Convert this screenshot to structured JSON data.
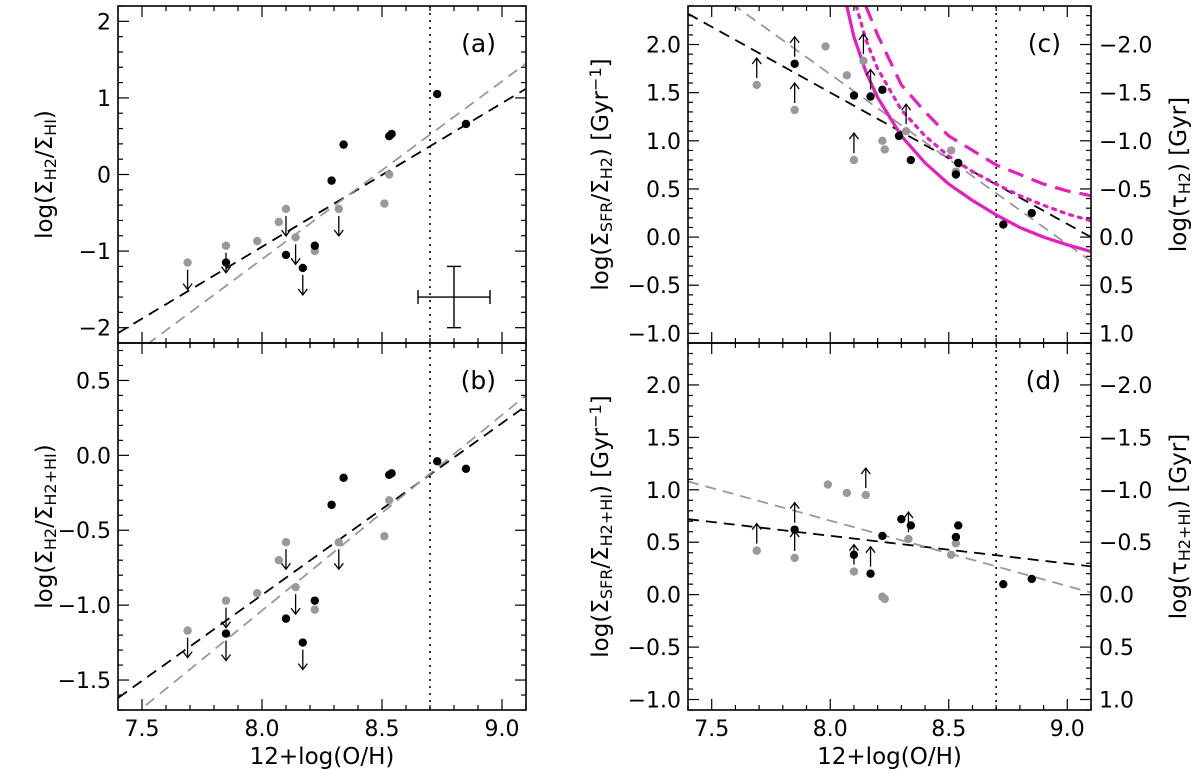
{
  "xlabel": "12+log(O/H)",
  "colors": {
    "gray": "#999999",
    "black": "#000000",
    "magenta": "#e61ebe"
  },
  "chart_data": [
    {
      "id": "a",
      "type": "scatter",
      "panel_label": "(a)",
      "ylabel_main": "log(Σ",
      "ylabel_sub1": "H2",
      "ylabel_mid": "/Σ",
      "ylabel_sub2": "HI",
      "ylabel_end": ")",
      "xlim": [
        7.4,
        9.1
      ],
      "ylim": [
        -2.2,
        2.2
      ],
      "x_ticks": [
        7.5,
        8.0,
        8.5,
        9.0
      ],
      "y_ticks": [
        -2,
        -1,
        0,
        1,
        2
      ],
      "y_tick_labels": [
        "−2",
        "−1",
        "0",
        "1",
        "2"
      ],
      "vline": 8.7,
      "error_bar": {
        "x": 8.8,
        "y": -1.6,
        "xerr": 0.15,
        "yerr": 0.4
      },
      "series": [
        {
          "color": "gray",
          "points": [
            [
              7.69,
              -1.15,
              "down"
            ],
            [
              7.85,
              -0.93,
              "down"
            ],
            [
              7.98,
              -0.87,
              null
            ],
            [
              8.07,
              -0.62,
              null
            ],
            [
              8.1,
              -0.45,
              "down"
            ],
            [
              8.14,
              -0.82,
              "down"
            ],
            [
              8.22,
              -1.0,
              null
            ],
            [
              8.32,
              -0.45,
              "down"
            ],
            [
              8.51,
              -0.38,
              null
            ],
            [
              8.53,
              0.0,
              null
            ]
          ]
        },
        {
          "color": "black",
          "points": [
            [
              7.85,
              -1.15,
              null
            ],
            [
              8.1,
              -1.05,
              null
            ],
            [
              8.17,
              -1.22,
              "down"
            ],
            [
              8.22,
              -0.93,
              null
            ],
            [
              8.29,
              -0.08,
              null
            ],
            [
              8.34,
              0.39,
              null
            ],
            [
              8.53,
              0.5,
              null
            ],
            [
              8.54,
              0.53,
              null
            ],
            [
              8.73,
              1.05,
              null
            ],
            [
              8.85,
              0.66,
              null
            ]
          ]
        }
      ],
      "lines": [
        {
          "color": "black",
          "dash": "long",
          "x": [
            7.4,
            9.1
          ],
          "y": [
            -2.07,
            1.12
          ]
        },
        {
          "color": "gray",
          "dash": "long",
          "x": [
            7.4,
            9.1
          ],
          "y": [
            -2.5,
            1.45
          ]
        }
      ]
    },
    {
      "id": "b",
      "type": "scatter",
      "panel_label": "(b)",
      "ylabel_main": "log(Σ",
      "ylabel_sub1": "H2",
      "ylabel_mid": "/Σ",
      "ylabel_sub2": "H2+HI",
      "ylabel_end": ")",
      "xlim": [
        7.4,
        9.1
      ],
      "ylim": [
        -1.7,
        0.75
      ],
      "x_ticks": [
        7.5,
        8.0,
        8.5,
        9.0
      ],
      "x_tick_labels": [
        "7.5",
        "8.0",
        "8.5",
        "9.0"
      ],
      "y_ticks": [
        -1.5,
        -1.0,
        -0.5,
        0.0,
        0.5
      ],
      "y_tick_labels": [
        "−1.5",
        "−1.0",
        "−0.5",
        "0.0",
        "0.5"
      ],
      "vline": 8.7,
      "series": [
        {
          "color": "gray",
          "points": [
            [
              7.69,
              -1.17,
              "down"
            ],
            [
              7.85,
              -0.97,
              "down"
            ],
            [
              7.98,
              -0.92,
              null
            ],
            [
              8.07,
              -0.7,
              null
            ],
            [
              8.1,
              -0.58,
              "down"
            ],
            [
              8.14,
              -0.88,
              "down"
            ],
            [
              8.22,
              -1.03,
              null
            ],
            [
              8.32,
              -0.58,
              "down"
            ],
            [
              8.51,
              -0.54,
              null
            ],
            [
              8.53,
              -0.3,
              null
            ]
          ]
        },
        {
          "color": "black",
          "points": [
            [
              7.85,
              -1.19,
              "down"
            ],
            [
              8.1,
              -1.09,
              null
            ],
            [
              8.17,
              -1.25,
              "down"
            ],
            [
              8.22,
              -0.97,
              null
            ],
            [
              8.29,
              -0.33,
              null
            ],
            [
              8.34,
              -0.15,
              null
            ],
            [
              8.53,
              -0.13,
              null
            ],
            [
              8.54,
              -0.12,
              null
            ],
            [
              8.73,
              -0.04,
              null
            ],
            [
              8.85,
              -0.09,
              null
            ]
          ]
        }
      ],
      "lines": [
        {
          "color": "black",
          "dash": "long",
          "x": [
            7.4,
            9.1
          ],
          "y": [
            -1.62,
            0.33
          ]
        },
        {
          "color": "gray",
          "dash": "long",
          "x": [
            7.4,
            9.1
          ],
          "y": [
            -1.82,
            0.4
          ]
        }
      ]
    },
    {
      "id": "c",
      "type": "scatter",
      "panel_label": "(c)",
      "ylabel_main": "log(Σ",
      "ylabel_sub1": "SFR",
      "ylabel_mid": "/Σ",
      "ylabel_sub2": "H2",
      "ylabel_end": ") [Gyr",
      "ylabel_sup": "−1",
      "ylabel_close": "]",
      "y2label_main": "log(τ",
      "y2label_sub": "H2",
      "y2label_end": ") [Gyr]",
      "xlim": [
        7.4,
        9.1
      ],
      "ylim": [
        -1.1,
        2.4
      ],
      "x_ticks": [
        7.5,
        8.0,
        8.5,
        9.0
      ],
      "y_ticks": [
        -1.0,
        -0.5,
        0.0,
        0.5,
        1.0,
        1.5,
        2.0
      ],
      "y_tick_labels": [
        "−1.0",
        "−0.5",
        "0.0",
        "0.5",
        "1.0",
        "1.5",
        "2.0"
      ],
      "y2_ticks": [
        -1.0,
        -0.5,
        0.0,
        0.5,
        1.0,
        1.5,
        2.0
      ],
      "y2_tick_labels": [
        "1.0",
        "0.5",
        "0.0",
        "−0.5",
        "−1.0",
        "−1.5",
        "−2.0"
      ],
      "vline": 8.7,
      "series": [
        {
          "color": "gray",
          "points": [
            [
              7.69,
              1.58,
              "up"
            ],
            [
              7.85,
              1.32,
              "up"
            ],
            [
              7.98,
              1.98,
              null
            ],
            [
              8.07,
              1.68,
              null
            ],
            [
              8.1,
              0.8,
              "up"
            ],
            [
              8.14,
              1.83,
              "up"
            ],
            [
              8.22,
              1.0,
              null
            ],
            [
              8.23,
              0.91,
              null
            ],
            [
              8.32,
              1.1,
              "up"
            ],
            [
              8.51,
              0.9,
              null
            ],
            [
              8.53,
              0.68,
              null
            ]
          ]
        },
        {
          "color": "black",
          "points": [
            [
              7.85,
              1.8,
              "up"
            ],
            [
              8.1,
              1.47,
              null
            ],
            [
              8.17,
              1.46,
              "up"
            ],
            [
              8.22,
              1.53,
              null
            ],
            [
              8.29,
              1.05,
              null
            ],
            [
              8.34,
              0.8,
              null
            ],
            [
              8.53,
              0.65,
              null
            ],
            [
              8.54,
              0.77,
              null
            ],
            [
              8.73,
              0.13,
              null
            ],
            [
              8.85,
              0.25,
              null
            ]
          ]
        }
      ],
      "lines": [
        {
          "color": "black",
          "dash": "long",
          "x": [
            7.4,
            9.1
          ],
          "y": [
            2.32,
            0.0
          ]
        },
        {
          "color": "gray",
          "dash": "long",
          "x": [
            7.4,
            9.1
          ],
          "y": [
            2.75,
            -0.25
          ]
        }
      ],
      "model_curves": [
        {
          "color": "magenta",
          "style": "solid",
          "x": [
            8.07,
            8.1,
            8.15,
            8.2,
            8.3,
            8.4,
            8.5,
            8.6,
            8.7,
            8.8,
            8.9,
            9.0,
            9.1
          ],
          "y": [
            2.4,
            2.08,
            1.72,
            1.45,
            1.05,
            0.77,
            0.55,
            0.38,
            0.23,
            0.1,
            0.0,
            -0.08,
            -0.15
          ]
        },
        {
          "color": "magenta",
          "style": "dotted",
          "x": [
            8.11,
            8.15,
            8.2,
            8.3,
            8.4,
            8.5,
            8.6,
            8.7,
            8.8,
            8.9,
            9.0,
            9.1
          ],
          "y": [
            2.4,
            2.05,
            1.75,
            1.32,
            1.05,
            0.84,
            0.68,
            0.55,
            0.43,
            0.33,
            0.24,
            0.17
          ]
        },
        {
          "color": "magenta",
          "style": "dashed",
          "x": [
            8.15,
            8.2,
            8.3,
            8.4,
            8.5,
            8.6,
            8.7,
            8.8,
            8.9,
            9.0,
            9.1
          ],
          "y": [
            2.4,
            2.1,
            1.58,
            1.3,
            1.05,
            0.9,
            0.75,
            0.65,
            0.55,
            0.48,
            0.43
          ]
        }
      ]
    },
    {
      "id": "d",
      "type": "scatter",
      "panel_label": "(d)",
      "ylabel_main": "log(Σ",
      "ylabel_sub1": "SFR",
      "ylabel_mid": "/Σ",
      "ylabel_sub2": "H2+HI",
      "ylabel_end": ") [Gyr",
      "ylabel_sup": "−1",
      "ylabel_close": "]",
      "y2label_main": "log(τ",
      "y2label_sub": "H2+HI",
      "y2label_end": ") [Gyr]",
      "xlim": [
        7.4,
        9.1
      ],
      "ylim": [
        -1.1,
        2.4
      ],
      "x_ticks": [
        7.5,
        8.0,
        8.5,
        9.0
      ],
      "x_tick_labels": [
        "7.5",
        "8.0",
        "8.5",
        "9.0"
      ],
      "y_ticks": [
        -1.0,
        -0.5,
        0.0,
        0.5,
        1.0,
        1.5,
        2.0
      ],
      "y_tick_labels": [
        "−1.0",
        "−0.5",
        "0.0",
        "0.5",
        "1.0",
        "1.5",
        "2.0"
      ],
      "y2_ticks": [
        -1.0,
        -0.5,
        0.0,
        0.5,
        1.0,
        1.5,
        2.0
      ],
      "y2_tick_labels": [
        "1.0",
        "0.5",
        "0.0",
        "−0.5",
        "−1.0",
        "−1.5",
        "−2.0"
      ],
      "vline": 8.7,
      "series": [
        {
          "color": "gray",
          "points": [
            [
              7.69,
              0.42,
              "up"
            ],
            [
              7.85,
              0.35,
              "up"
            ],
            [
              7.99,
              1.05,
              null
            ],
            [
              8.07,
              0.97,
              null
            ],
            [
              8.1,
              0.22,
              "up"
            ],
            [
              8.15,
              0.95,
              "up"
            ],
            [
              8.22,
              -0.02,
              null
            ],
            [
              8.23,
              -0.04,
              null
            ],
            [
              8.33,
              0.53,
              "up"
            ],
            [
              8.51,
              0.38,
              null
            ],
            [
              8.53,
              0.49,
              null
            ]
          ]
        },
        {
          "color": "black",
          "points": [
            [
              7.85,
              0.62,
              "up"
            ],
            [
              8.1,
              0.38,
              null
            ],
            [
              8.17,
              0.2,
              "up"
            ],
            [
              8.22,
              0.56,
              null
            ],
            [
              8.3,
              0.72,
              null
            ],
            [
              8.34,
              0.66,
              null
            ],
            [
              8.53,
              0.55,
              null
            ],
            [
              8.54,
              0.66,
              null
            ],
            [
              8.73,
              0.1,
              null
            ],
            [
              8.85,
              0.15,
              null
            ]
          ]
        }
      ],
      "lines": [
        {
          "color": "black",
          "dash": "long",
          "x": [
            7.4,
            9.1
          ],
          "y": [
            0.72,
            0.27
          ]
        },
        {
          "color": "gray",
          "dash": "long",
          "x": [
            7.4,
            9.1
          ],
          "y": [
            1.08,
            0.02
          ]
        }
      ]
    }
  ]
}
